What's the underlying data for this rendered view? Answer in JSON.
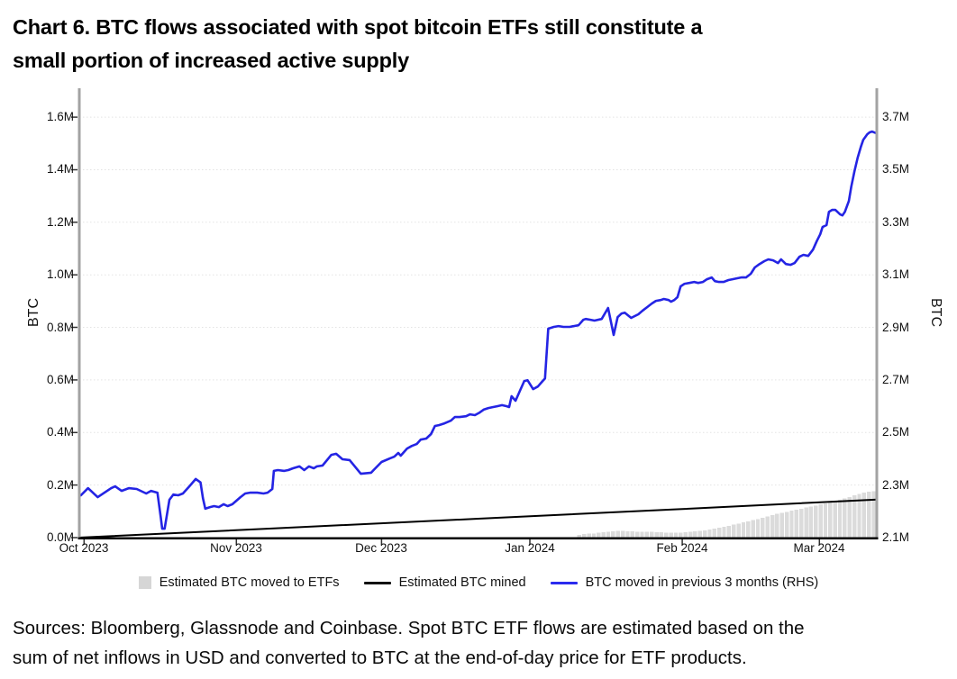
{
  "header": {
    "title_lines": [
      "Chart 6. BTC flows associated with spot bitcoin ETFs still constitute a",
      "small portion of increased active supply"
    ]
  },
  "footer": {
    "source_lines": [
      "Sources: Bloomberg, Glassnode and Coinbase. Spot BTC ETF flows are estimated based on the",
      "sum of net inflows in USD and converted to BTC at the end-of-day price for ETF products."
    ]
  },
  "legend": {
    "items": [
      {
        "label": "Estimated BTC moved to ETFs",
        "swatch": "gray-square",
        "color": "#d6d6d6"
      },
      {
        "label": "Estimated BTC mined",
        "swatch": "black-line",
        "color": "#111111"
      },
      {
        "label": "BTC moved in previous 3 months (RHS)",
        "swatch": "blue-line",
        "color": "#2b2bee"
      }
    ]
  },
  "chart_data": {
    "type": "line+bar",
    "title": "Chart 6. BTC flows associated with spot bitcoin ETFs still constitute a small portion of increased active supply",
    "grid": true,
    "legend_position": "bottom",
    "colors": {
      "bars": "#dbdbdb",
      "mined_line": "#000000",
      "moved_line": "#2424e4",
      "gridline": "#e3e3e3",
      "axis_gray": "#a3a3a3",
      "axis_black": "#000000"
    },
    "left_axis": {
      "title": "BTC",
      "lim": [
        0,
        1.71
      ],
      "tick_values": [
        0.0,
        0.2,
        0.4,
        0.6,
        0.8,
        1.0,
        1.2,
        1.4,
        1.6
      ],
      "tick_labels": [
        "0.0M",
        "0.2M",
        "0.4M",
        "0.6M",
        "0.8M",
        "1.0M",
        "1.2M",
        "1.4M",
        "1.6M"
      ]
    },
    "right_axis": {
      "title": "BTC",
      "lim": [
        2.1,
        3.81
      ],
      "tick_values": [
        2.1,
        2.3,
        2.5,
        2.7,
        2.9,
        3.1,
        3.3,
        3.5,
        3.7
      ],
      "tick_labels": [
        "2.1M",
        "2.3M",
        "2.5M",
        "2.7M",
        "2.9M",
        "3.1M",
        "3.3M",
        "3.5M",
        "3.7M"
      ]
    },
    "x_axis": {
      "ticks": [
        {
          "label": "Oct 2023",
          "f": 0.006
        },
        {
          "label": "Nov 2023",
          "f": 0.197
        },
        {
          "label": "Dec 2023",
          "f": 0.379
        },
        {
          "label": "Jan 2024",
          "f": 0.565
        },
        {
          "label": "Feb 2024",
          "f": 0.756
        },
        {
          "label": "Mar 2024",
          "f": 0.928
        }
      ]
    },
    "series": [
      {
        "name": "Estimated BTC moved to ETFs",
        "type": "bar",
        "axis": "left",
        "color": "#dbdbdb",
        "start_f": 0.627,
        "step_f": 0.00605,
        "values": [
          0.01,
          0.013,
          0.015,
          0.016,
          0.018,
          0.02,
          0.022,
          0.024,
          0.025,
          0.025,
          0.024,
          0.024,
          0.023,
          0.023,
          0.022,
          0.022,
          0.021,
          0.02,
          0.019,
          0.018,
          0.018,
          0.019,
          0.02,
          0.022,
          0.024,
          0.026,
          0.028,
          0.031,
          0.034,
          0.037,
          0.041,
          0.045,
          0.049,
          0.053,
          0.058,
          0.062,
          0.067,
          0.071,
          0.076,
          0.081,
          0.086,
          0.09,
          0.094,
          0.098,
          0.102,
          0.106,
          0.11,
          0.114,
          0.118,
          0.122,
          0.126,
          0.13,
          0.134,
          0.139,
          0.144,
          0.149,
          0.155,
          0.161,
          0.166,
          0.171,
          0.175,
          0.177
        ]
      },
      {
        "name": "Estimated BTC mined",
        "type": "line",
        "axis": "left",
        "color": "#000000",
        "width": 2,
        "points": [
          [
            0.0,
            0.0
          ],
          [
            0.25,
            0.036
          ],
          [
            0.5,
            0.072
          ],
          [
            0.75,
            0.108
          ],
          [
            1.0,
            0.145
          ]
        ]
      },
      {
        "name": "BTC moved in previous 3 months (RHS)",
        "type": "line",
        "axis": "right",
        "color": "#2424e4",
        "width": 2.6,
        "points": [
          [
            0.002,
            2.261
          ],
          [
            0.011,
            2.288
          ],
          [
            0.023,
            2.254
          ],
          [
            0.04,
            2.288
          ],
          [
            0.045,
            2.295
          ],
          [
            0.053,
            2.278
          ],
          [
            0.062,
            2.288
          ],
          [
            0.072,
            2.285
          ],
          [
            0.084,
            2.268
          ],
          [
            0.09,
            2.278
          ],
          [
            0.098,
            2.271
          ],
          [
            0.102,
            2.18
          ],
          [
            0.104,
            2.134
          ],
          [
            0.107,
            2.134
          ],
          [
            0.113,
            2.244
          ],
          [
            0.118,
            2.264
          ],
          [
            0.124,
            2.261
          ],
          [
            0.13,
            2.268
          ],
          [
            0.138,
            2.295
          ],
          [
            0.146,
            2.323
          ],
          [
            0.152,
            2.31
          ],
          [
            0.155,
            2.25
          ],
          [
            0.158,
            2.21
          ],
          [
            0.164,
            2.216
          ],
          [
            0.169,
            2.22
          ],
          [
            0.175,
            2.216
          ],
          [
            0.181,
            2.227
          ],
          [
            0.186,
            2.22
          ],
          [
            0.192,
            2.227
          ],
          [
            0.202,
            2.254
          ],
          [
            0.208,
            2.268
          ],
          [
            0.214,
            2.271
          ],
          [
            0.223,
            2.271
          ],
          [
            0.231,
            2.268
          ],
          [
            0.236,
            2.271
          ],
          [
            0.242,
            2.285
          ],
          [
            0.244,
            2.354
          ],
          [
            0.249,
            2.357
          ],
          [
            0.257,
            2.354
          ],
          [
            0.262,
            2.357
          ],
          [
            0.268,
            2.364
          ],
          [
            0.276,
            2.371
          ],
          [
            0.282,
            2.357
          ],
          [
            0.288,
            2.371
          ],
          [
            0.294,
            2.364
          ],
          [
            0.298,
            2.371
          ],
          [
            0.305,
            2.374
          ],
          [
            0.316,
            2.415
          ],
          [
            0.322,
            2.419
          ],
          [
            0.33,
            2.398
          ],
          [
            0.339,
            2.395
          ],
          [
            0.353,
            2.343
          ],
          [
            0.366,
            2.347
          ],
          [
            0.369,
            2.357
          ],
          [
            0.379,
            2.388
          ],
          [
            0.389,
            2.401
          ],
          [
            0.395,
            2.408
          ],
          [
            0.4,
            2.422
          ],
          [
            0.403,
            2.412
          ],
          [
            0.411,
            2.439
          ],
          [
            0.417,
            2.449
          ],
          [
            0.423,
            2.456
          ],
          [
            0.428,
            2.473
          ],
          [
            0.435,
            2.477
          ],
          [
            0.441,
            2.494
          ],
          [
            0.446,
            2.525
          ],
          [
            0.451,
            2.528
          ],
          [
            0.458,
            2.535
          ],
          [
            0.466,
            2.545
          ],
          [
            0.471,
            2.559
          ],
          [
            0.477,
            2.559
          ],
          [
            0.485,
            2.562
          ],
          [
            0.49,
            2.569
          ],
          [
            0.496,
            2.566
          ],
          [
            0.502,
            2.576
          ],
          [
            0.507,
            2.587
          ],
          [
            0.513,
            2.593
          ],
          [
            0.519,
            2.597
          ],
          [
            0.524,
            2.6
          ],
          [
            0.53,
            2.604
          ],
          [
            0.536,
            2.6
          ],
          [
            0.539,
            2.597
          ],
          [
            0.542,
            2.638
          ],
          [
            0.547,
            2.621
          ],
          [
            0.553,
            2.662
          ],
          [
            0.558,
            2.696
          ],
          [
            0.562,
            2.699
          ],
          [
            0.569,
            2.665
          ],
          [
            0.575,
            2.675
          ],
          [
            0.581,
            2.696
          ],
          [
            0.584,
            2.706
          ],
          [
            0.588,
            2.895
          ],
          [
            0.595,
            2.902
          ],
          [
            0.601,
            2.905
          ],
          [
            0.607,
            2.902
          ],
          [
            0.615,
            2.902
          ],
          [
            0.62,
            2.905
          ],
          [
            0.626,
            2.908
          ],
          [
            0.632,
            2.929
          ],
          [
            0.635,
            2.932
          ],
          [
            0.641,
            2.929
          ],
          [
            0.646,
            2.926
          ],
          [
            0.655,
            2.932
          ],
          [
            0.663,
            2.974
          ],
          [
            0.67,
            2.871
          ],
          [
            0.675,
            2.939
          ],
          [
            0.68,
            2.953
          ],
          [
            0.684,
            2.956
          ],
          [
            0.692,
            2.936
          ],
          [
            0.701,
            2.95
          ],
          [
            0.706,
            2.963
          ],
          [
            0.712,
            2.977
          ],
          [
            0.718,
            2.991
          ],
          [
            0.723,
            3.001
          ],
          [
            0.729,
            3.004
          ],
          [
            0.733,
            3.008
          ],
          [
            0.739,
            3.004
          ],
          [
            0.742,
            2.998
          ],
          [
            0.746,
            3.004
          ],
          [
            0.75,
            3.015
          ],
          [
            0.754,
            3.056
          ],
          [
            0.759,
            3.066
          ],
          [
            0.765,
            3.069
          ],
          [
            0.771,
            3.073
          ],
          [
            0.776,
            3.069
          ],
          [
            0.782,
            3.073
          ],
          [
            0.787,
            3.083
          ],
          [
            0.793,
            3.09
          ],
          [
            0.797,
            3.076
          ],
          [
            0.802,
            3.073
          ],
          [
            0.808,
            3.073
          ],
          [
            0.814,
            3.08
          ],
          [
            0.819,
            3.083
          ],
          [
            0.825,
            3.087
          ],
          [
            0.83,
            3.09
          ],
          [
            0.836,
            3.09
          ],
          [
            0.842,
            3.104
          ],
          [
            0.847,
            3.128
          ],
          [
            0.853,
            3.141
          ],
          [
            0.859,
            3.152
          ],
          [
            0.864,
            3.159
          ],
          [
            0.87,
            3.155
          ],
          [
            0.876,
            3.145
          ],
          [
            0.88,
            3.159
          ],
          [
            0.886,
            3.141
          ],
          [
            0.892,
            3.138
          ],
          [
            0.897,
            3.145
          ],
          [
            0.903,
            3.169
          ],
          [
            0.908,
            3.176
          ],
          [
            0.914,
            3.172
          ],
          [
            0.92,
            3.196
          ],
          [
            0.925,
            3.23
          ],
          [
            0.929,
            3.254
          ],
          [
            0.932,
            3.282
          ],
          [
            0.937,
            3.289
          ],
          [
            0.94,
            3.34
          ],
          [
            0.944,
            3.347
          ],
          [
            0.948,
            3.347
          ],
          [
            0.954,
            3.33
          ],
          [
            0.957,
            3.326
          ],
          [
            0.96,
            3.34
          ],
          [
            0.965,
            3.381
          ],
          [
            0.968,
            3.436
          ],
          [
            0.972,
            3.494
          ],
          [
            0.976,
            3.546
          ],
          [
            0.98,
            3.587
          ],
          [
            0.983,
            3.614
          ],
          [
            0.988,
            3.635
          ],
          [
            0.991,
            3.642
          ],
          [
            0.994,
            3.645
          ],
          [
            1.0,
            3.638
          ]
        ]
      }
    ]
  }
}
